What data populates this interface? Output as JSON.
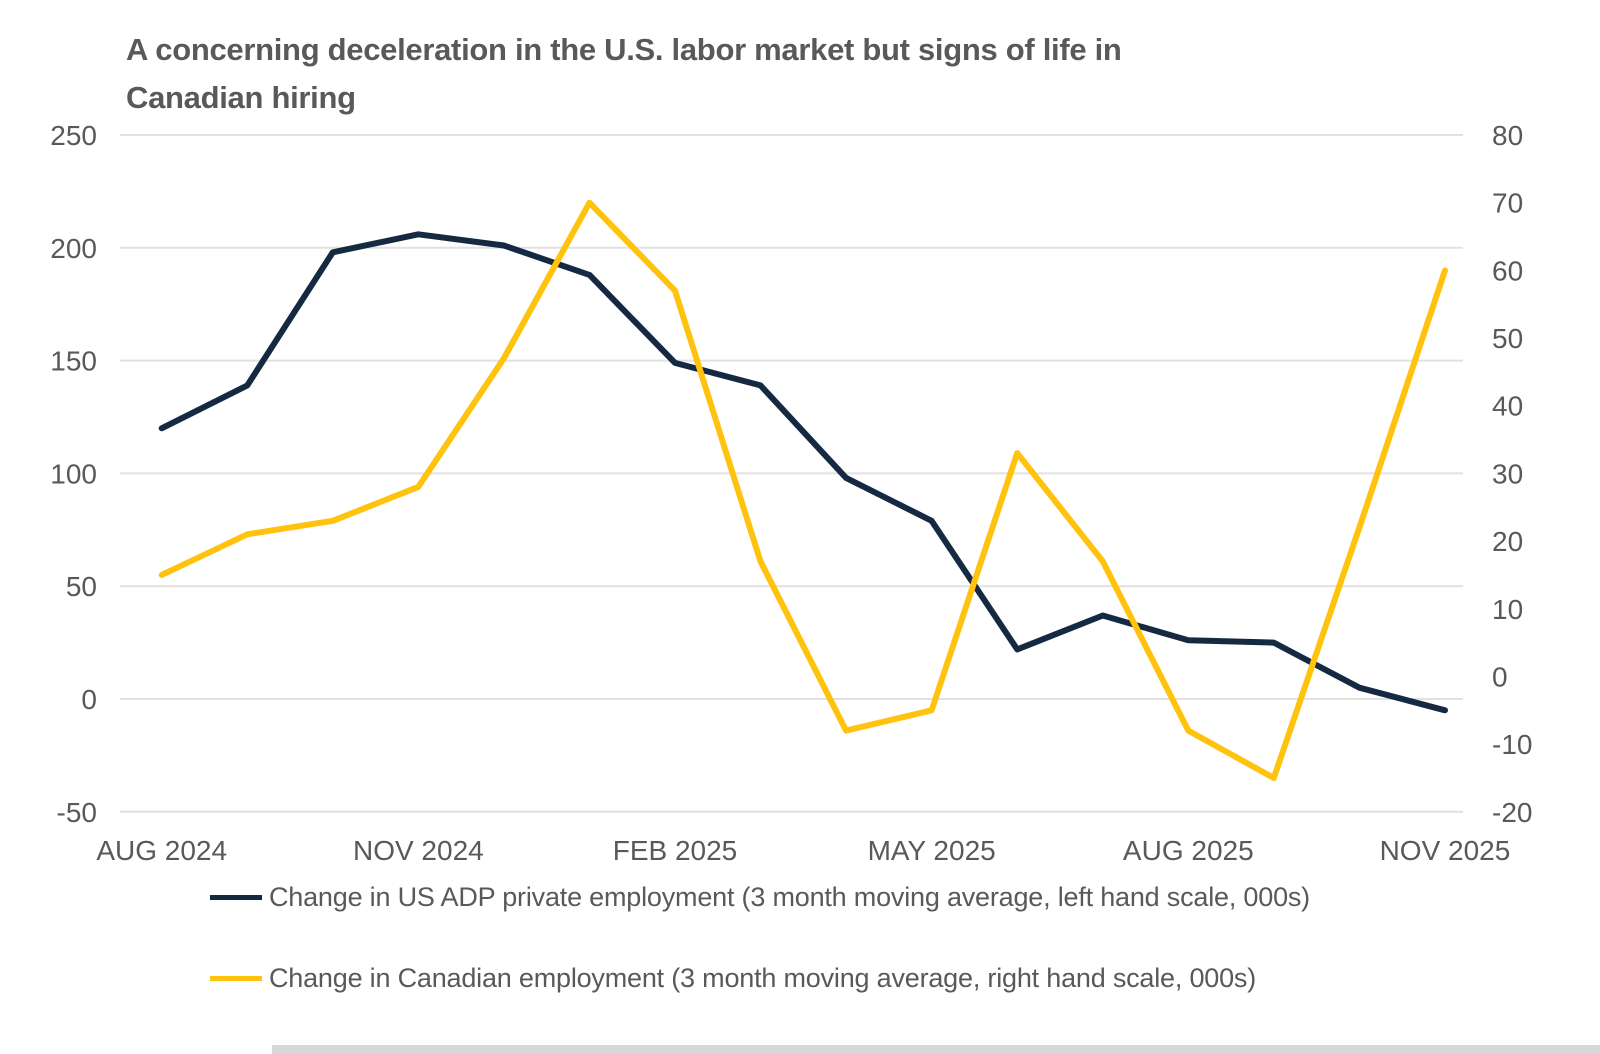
{
  "title": {
    "line1": "A concerning deceleration in the U.S. labor market  but signs of life in",
    "line2": "Canadian hiring"
  },
  "colors": {
    "us_line": "#152a42",
    "canada_line": "#ffc20d",
    "grid": "#e2e0e0",
    "axis_text": "#595959",
    "title_text": "#595959",
    "footer_strip": "#d7d7d7"
  },
  "chart_data": {
    "type": "line",
    "x": [
      "Aug 2024",
      "Sep 2024",
      "Oct 2024",
      "Nov 2024",
      "Dec 2024",
      "Jan 2025",
      "Feb 2025",
      "Mar 2025",
      "Apr 2025",
      "May 2025",
      "Jun 2025",
      "Jul 2025",
      "Aug 2025",
      "Sep 2025",
      "Oct 2025",
      "Nov 2025"
    ],
    "x_tick_labels": [
      "AUG 2024",
      "NOV 2024",
      "FEB 2025",
      "MAY 2025",
      "AUG 2025",
      "NOV 2025"
    ],
    "x_tick_indices": [
      0,
      3,
      6,
      9,
      12,
      15
    ],
    "left_axis": {
      "min": -50,
      "max": 250,
      "ticks": [
        250,
        200,
        150,
        100,
        50,
        0,
        -50
      ]
    },
    "right_axis": {
      "min": -20,
      "max": 80,
      "ticks": [
        80,
        70,
        60,
        50,
        40,
        30,
        20,
        10,
        0,
        -10,
        -20
      ]
    },
    "grid": true,
    "legend_position": "bottom",
    "title": "A concerning deceleration in the U.S. labor market but signs of life in Canadian hiring",
    "series": [
      {
        "name": "Change in US ADP private employment (3 month moving average, left hand scale, 000s)",
        "axis": "left",
        "color_key": "us_line",
        "values": [
          120,
          139,
          198,
          206,
          201,
          188,
          149,
          139,
          98,
          79,
          22,
          37,
          26,
          25,
          5,
          -5
        ]
      },
      {
        "name": "Change in Canadian employment (3 month moving average, right hand scale, 000s)",
        "axis": "right",
        "color_key": "canada_line",
        "values": [
          15,
          21,
          23,
          28,
          47,
          70,
          57,
          17,
          -8,
          -5,
          33,
          17,
          -8,
          -15,
          22,
          60
        ]
      }
    ]
  }
}
